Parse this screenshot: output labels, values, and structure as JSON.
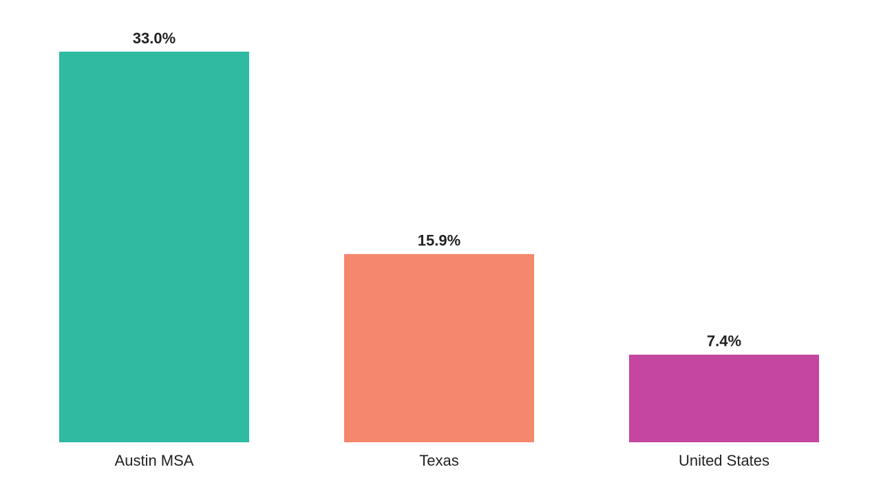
{
  "chart_data": {
    "type": "bar",
    "categories": [
      "Austin MSA",
      "Texas",
      "United States"
    ],
    "values": [
      33.0,
      15.9,
      7.4
    ],
    "value_labels": [
      "33.0%",
      "15.9%",
      "7.4%"
    ],
    "colors": [
      "#2fbaa2",
      "#f5876c",
      "#c446a0"
    ]
  }
}
